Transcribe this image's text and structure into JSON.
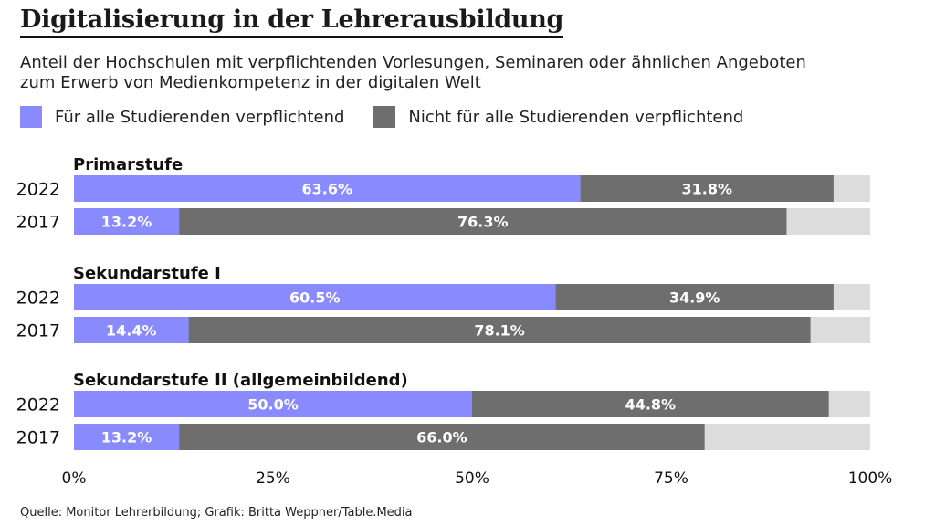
{
  "title": "Digitalisierung in der Lehrerausbildung",
  "subtitle": "Anteil der Hochschulen mit verpflichtenden Vorlesungen, Seminaren oder ähnlichen Angeboten zum Erwerb von Medienkompetenz in der digitalen Welt",
  "source": "Quelle: Monitor Lehrerbildung; Grafik: Britta Weppner/Table.Media",
  "colors": {
    "mandatory_all": "#8a8aff",
    "not_all": "#6e6e6e",
    "remainder": "#dcdcdc"
  },
  "chart_data": {
    "type": "bar",
    "orientation": "horizontal",
    "stacked": true,
    "xlim": [
      0,
      100
    ],
    "x_ticks": [
      "0%",
      "25%",
      "50%",
      "75%",
      "100%"
    ],
    "grid": false,
    "legend_position": "top-left",
    "series": [
      {
        "name": "Für alle Studierenden verpflichtend",
        "key": "mandatory_all"
      },
      {
        "name": "Nicht für alle Studierenden verpflichtend",
        "key": "not_all"
      }
    ],
    "groups": [
      {
        "label": "Primarstufe",
        "rows": [
          {
            "year": "2022",
            "values": [
              63.6,
              31.8
            ],
            "labels": [
              "63.6%",
              "31.8%"
            ]
          },
          {
            "year": "2017",
            "values": [
              13.2,
              76.3
            ],
            "labels": [
              "13.2%",
              "76.3%"
            ]
          }
        ]
      },
      {
        "label": "Sekundarstufe I",
        "rows": [
          {
            "year": "2022",
            "values": [
              60.5,
              34.9
            ],
            "labels": [
              "60.5%",
              "34.9%"
            ]
          },
          {
            "year": "2017",
            "values": [
              14.4,
              78.1
            ],
            "labels": [
              "14.4%",
              "78.1%"
            ]
          }
        ]
      },
      {
        "label": "Sekundarstufe II (allgemeinbildend)",
        "rows": [
          {
            "year": "2022",
            "values": [
              50.0,
              44.8
            ],
            "labels": [
              "50.0%",
              "44.8%"
            ]
          },
          {
            "year": "2017",
            "values": [
              13.2,
              66.0
            ],
            "labels": [
              "13.2%",
              "66.0%"
            ]
          }
        ]
      }
    ]
  }
}
